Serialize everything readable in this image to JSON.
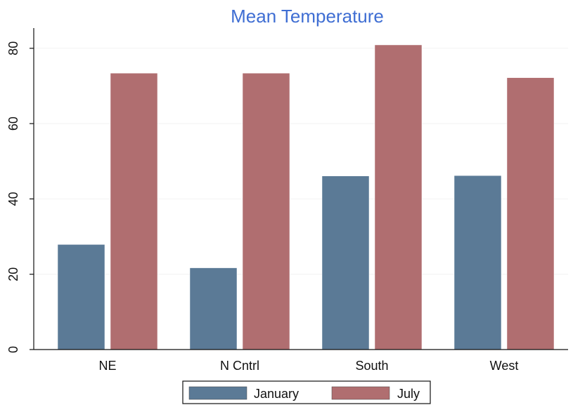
{
  "chart_data": {
    "type": "bar",
    "title": "Mean Temperature",
    "xlabel": "",
    "ylabel": "",
    "categories": [
      "NE",
      "N Cntrl",
      "South",
      "West"
    ],
    "series": [
      {
        "name": "January",
        "values": [
          27.9,
          21.7,
          46.1,
          46.2
        ],
        "color": "#5b7a96"
      },
      {
        "name": "July",
        "values": [
          73.4,
          73.4,
          80.9,
          72.2
        ],
        "color": "#b06e70"
      }
    ],
    "ylim": [
      0,
      85
    ],
    "yticks": [
      0,
      20,
      40,
      60,
      80
    ],
    "grid": true,
    "legend": "bottom"
  }
}
